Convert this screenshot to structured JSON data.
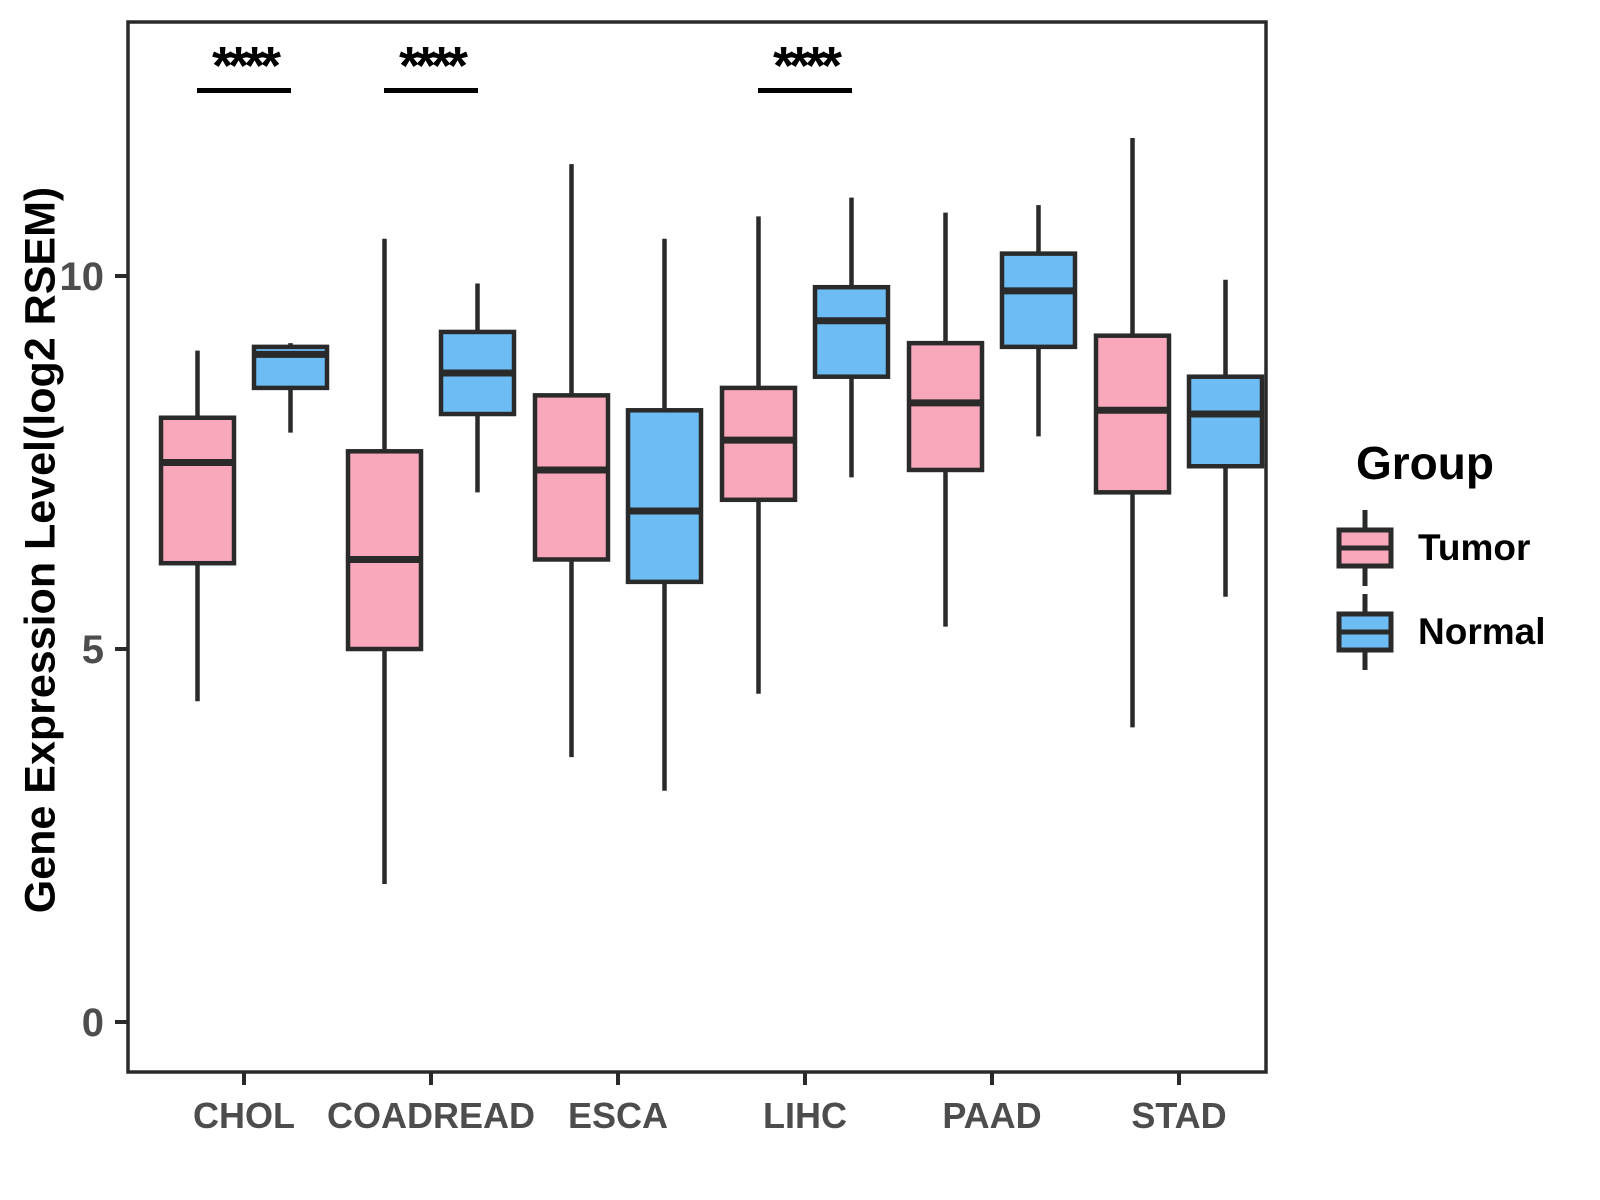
{
  "chart_data": {
    "type": "grouped_boxplot",
    "title": "",
    "xlabel": "",
    "ylabel": "Gene Expression Level(log2 RSEM)",
    "y_ticks": [
      0,
      5,
      10
    ],
    "ylim": [
      -0.7,
      13.4
    ],
    "grid": "off",
    "categories": [
      "CHOL",
      "COADREAD",
      "ESCA",
      "LIHC",
      "PAAD",
      "STAD"
    ],
    "legend": {
      "title": "Group",
      "position": "right",
      "entries": [
        {
          "label": "Tumor",
          "color": "#F8A8BA"
        },
        {
          "label": "Normal",
          "color": "#6DBDF4"
        }
      ]
    },
    "colors": {
      "box_stroke": "#2a2a2a",
      "axis_text": "#4d4d4d",
      "annotation": "#000000"
    },
    "series": [
      {
        "name": "Tumor",
        "color": "#F8A8BA",
        "boxes": [
          {
            "category": "CHOL",
            "min": 4.3,
            "q1": 6.15,
            "median": 7.5,
            "q3": 8.1,
            "max": 9.0
          },
          {
            "category": "COADREAD",
            "min": 1.85,
            "q1": 5.0,
            "median": 6.2,
            "q3": 7.65,
            "max": 10.5
          },
          {
            "category": "ESCA",
            "min": 3.55,
            "q1": 6.2,
            "median": 7.4,
            "q3": 8.4,
            "max": 11.5
          },
          {
            "category": "LIHC",
            "min": 4.4,
            "q1": 7.0,
            "median": 7.8,
            "q3": 8.5,
            "max": 10.8
          },
          {
            "category": "PAAD",
            "min": 5.3,
            "q1": 7.4,
            "median": 8.3,
            "q3": 9.1,
            "max": 10.85
          },
          {
            "category": "STAD",
            "min": 3.95,
            "q1": 7.1,
            "median": 8.2,
            "q3": 9.2,
            "max": 11.85
          }
        ]
      },
      {
        "name": "Normal",
        "color": "#6DBDF4",
        "boxes": [
          {
            "category": "CHOL",
            "min": 7.9,
            "q1": 8.5,
            "median": 8.95,
            "q3": 9.05,
            "max": 9.1
          },
          {
            "category": "COADREAD",
            "min": 7.1,
            "q1": 8.15,
            "median": 8.7,
            "q3": 9.25,
            "max": 9.9
          },
          {
            "category": "ESCA",
            "min": 3.1,
            "q1": 5.9,
            "median": 6.85,
            "q3": 8.2,
            "max": 10.5
          },
          {
            "category": "LIHC",
            "min": 7.3,
            "q1": 8.65,
            "median": 9.4,
            "q3": 9.85,
            "max": 11.05
          },
          {
            "category": "PAAD",
            "min": 7.85,
            "q1": 9.05,
            "median": 9.8,
            "q3": 10.3,
            "max": 10.95
          },
          {
            "category": "STAD",
            "min": 5.7,
            "q1": 7.45,
            "median": 8.15,
            "q3": 8.65,
            "max": 9.95
          }
        ]
      }
    ],
    "significance": [
      {
        "category": "CHOL",
        "label": "****"
      },
      {
        "category": "COADREAD",
        "label": "****"
      },
      {
        "category": "LIHC",
        "label": "****"
      }
    ]
  }
}
